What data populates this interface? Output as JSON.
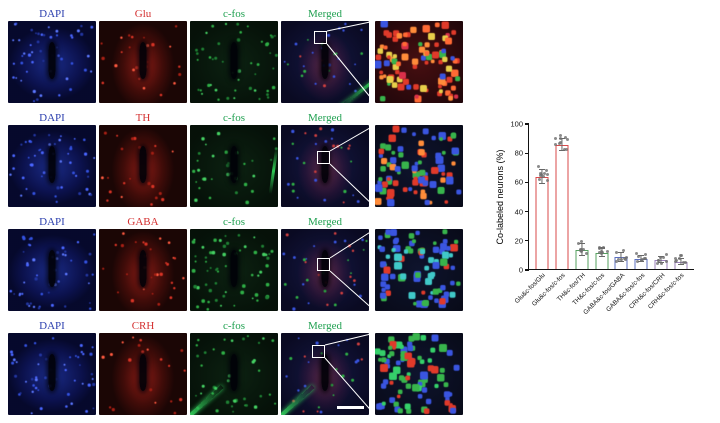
{
  "figure": {
    "rows": [
      {
        "dapi": "DAPI",
        "marker": "Glu",
        "cfos": "c-fos",
        "merged": "Merged"
      },
      {
        "dapi": "DAPI",
        "marker": "TH",
        "cfos": "c-fos",
        "merged": "Merged"
      },
      {
        "dapi": "DAPI",
        "marker": "GABA",
        "cfos": "c-fos",
        "merged": "Merged"
      },
      {
        "dapi": "DAPI",
        "marker": "CRH",
        "cfos": "c-fos",
        "merged": "Merged"
      }
    ],
    "label_colors": {
      "dapi": "#2b3fae",
      "marker": "#d43030",
      "cfos": "#1fa050",
      "merged": "#1fa050"
    }
  },
  "chart_data": {
    "type": "bar",
    "title": "",
    "xlabel": "",
    "ylabel": "Co-labeled neurons (%)",
    "ylim": [
      0,
      100
    ],
    "yticks": [
      0,
      20,
      40,
      60,
      80,
      100
    ],
    "categories": [
      "Glu&c-fos/Glu",
      "Glu&c-fos/c-fos",
      "TH&c-fos/TH",
      "TH&c-fos/c-fos",
      "GABA&c-fos/GABA",
      "GABA&c-fos/c-fos",
      "CRH&c-fos/CRH",
      "CRH&c-fos/c-fos"
    ],
    "values": [
      63,
      85,
      13,
      11,
      8,
      7,
      6,
      5
    ],
    "errors": [
      5,
      4,
      4,
      3,
      3,
      2,
      2,
      2
    ],
    "bar_colors": [
      "#d94a4a",
      "#d94a4a",
      "#55a05f",
      "#55a05f",
      "#5b6fc0",
      "#5b6fc0",
      "#9a7fba",
      "#9a7fba"
    ],
    "grid": false,
    "legend": "none"
  }
}
